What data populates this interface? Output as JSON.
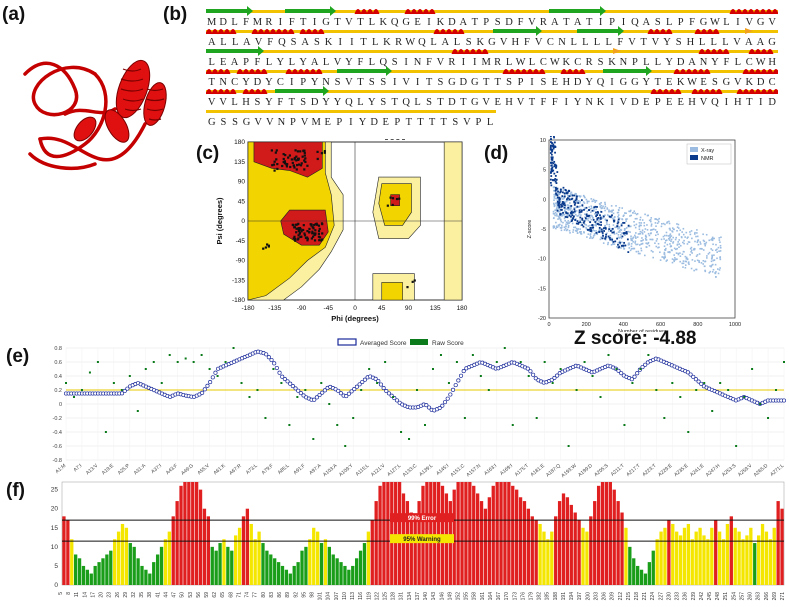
{
  "panels": {
    "a": "(a)",
    "b": "(b)",
    "c": "(c)",
    "d": "(d)",
    "e": "(e)",
    "f": "(f)"
  },
  "sequence": {
    "lines": [
      "MDLFMRIFTIGTVTLKQGEIKDATPSDFVRATATIPIQASLPFGWLIVG V",
      "ALLAVFQSASKIITLKRWQLALSKGVHFVCNLLLLFVTVYSHLLLVAAG",
      "LEAPFLYLYALVYFLQSINFVRIIMRLWLCWKCRSKNPLLYDANYFLCWH",
      "TNCYDYCIPYNSVTSSIVITSGDGTTSPISEHDYQIGGYTEKWESGVKDC",
      "VVLHSYFTSDYYQLYSTQLSTDTGVEHVTFFIYNKIVDEPEEHVQIHTID",
      "GSSGVVNPVMEPIYDEPTTTTSVPL"
    ],
    "colors": {
      "helix": "#d40000",
      "strand": "#1fa51f",
      "coil": "#f2c200",
      "turn": "#f2a020"
    }
  },
  "ramachandran": {
    "xlabel": "Phi (degrees)",
    "ylabel": "Psi (degrees)",
    "xticks": [
      "-180",
      "-135",
      "-90",
      "-45",
      "0",
      "45",
      "90",
      "135",
      "180"
    ],
    "yticks": [
      "180",
      "135",
      "90",
      "45",
      "0",
      "-45",
      "-90",
      "-135",
      "-180"
    ],
    "colors": {
      "core": "#d11a1a",
      "allowed": "#f2d400",
      "generous": "#faf0a0"
    }
  },
  "zscore": {
    "label": "Z score: -4.88",
    "legend": [
      "X-ray",
      "NMR"
    ],
    "xlabel": "Number of residues",
    "ylabel": "Z-score",
    "xticks": [
      "0",
      "200",
      "400",
      "600",
      "800",
      "1000"
    ],
    "yticks": [
      "10",
      "5",
      "0",
      "-5",
      "-10",
      "-15",
      "-20"
    ],
    "colors": {
      "xray": "#9bbce0",
      "nmr": "#0a3a8c"
    }
  },
  "chart_data": [
    {
      "type": "line",
      "title": "",
      "legend": [
        "Averaged Score",
        "Raw Score"
      ],
      "ylim": [
        -0.8,
        0.8
      ],
      "yticks": [
        "0.8",
        "0.6",
        "0.4",
        "0.2",
        "0",
        "-0.2",
        "-0.4",
        "-0.6",
        "-0.8"
      ],
      "xticks": [
        "A1:M",
        "A7:I",
        "A13:V",
        "A19:E",
        "A25:P",
        "A31:A",
        "A37:I",
        "A43:F",
        "A49:G",
        "A55:V",
        "A61:K",
        "A67:R",
        "A73:L",
        "A79:F",
        "A85:L",
        "A91:F",
        "A97:A",
        "A103:A",
        "A109:Y",
        "A115:L",
        "A121:V",
        "A127:L",
        "A133:C",
        "A139:L",
        "A145:I",
        "A151:C",
        "A157:N",
        "A163:I",
        "A169:I",
        "A175:T",
        "A181:E",
        "A187:Q",
        "A193:W",
        "A199:D",
        "A205:S",
        "A211:T",
        "A217:T",
        "A223:T",
        "A229:E",
        "A235:E",
        "A241:E",
        "A247:H",
        "A253:S",
        "A259:V",
        "A265:D",
        "A271:L"
      ],
      "threshold": 0.2,
      "series": [
        {
          "name": "Averaged Score",
          "values": [
            0.15,
            0.15,
            0.15,
            0.15,
            0.15,
            0.15,
            0.15,
            0.15,
            0.25,
            0.3,
            0.25,
            0.2,
            0.15,
            0.1,
            0.15,
            0.12,
            0.1,
            0.15,
            0.3,
            0.5,
            0.55,
            0.6,
            0.65,
            0.7,
            0.75,
            0.72,
            0.6,
            0.4,
            0.3,
            0.2,
            0.1,
            0.05,
            0.15,
            0.25,
            0.2,
            0.1,
            0.2,
            0.3,
            0.4,
            0.35,
            0.2,
            0.1,
            0.0,
            -0.05,
            -0.05,
            0.0,
            -0.1,
            -0.05,
            0.1,
            0.3,
            0.5,
            0.55,
            0.6,
            0.55,
            0.5,
            0.55,
            0.6,
            0.55,
            0.5,
            0.35,
            0.3,
            0.35,
            0.45,
            0.5,
            0.55,
            0.5,
            0.45,
            0.5,
            0.55,
            0.5,
            0.4,
            0.35,
            0.5,
            0.6,
            0.65,
            0.6,
            0.55,
            0.5,
            0.45,
            0.35,
            0.25,
            0.2,
            0.15,
            0.1,
            0.05,
            0.1,
            0.05,
            0.0,
            0.05,
            0.05,
            0.05
          ]
        },
        {
          "name": "Raw Score",
          "values": [
            0.3,
            0.1,
            0.2,
            0.45,
            0.6,
            -0.4,
            0.3,
            0.2,
            0.4,
            -0.1,
            0.5,
            0.6,
            0.3,
            0.7,
            0.6,
            0.65,
            0.6,
            0.7,
            0.5,
            0.4,
            0.6,
            0.8,
            0.3,
            0.1,
            0.2,
            -0.2,
            0.5,
            0.3,
            -0.3,
            0.1,
            0.2,
            -0.5,
            0.3,
            0.0,
            -0.3,
            -0.6,
            -0.2,
            0.2,
            0.5,
            0.3,
            0.6,
            0.1,
            -0.4,
            -0.5,
            0.2,
            -0.3,
            0.5,
            0.7,
            0.3,
            0.6,
            -0.2,
            0.7,
            0.4,
            0.2,
            0.6,
            0.8,
            -0.3,
            0.6,
            0.4,
            -0.2,
            0.6,
            0.3,
            0.5,
            -0.6,
            0.2,
            0.6,
            0.4,
            0.1,
            0.7,
            0.5,
            -0.3,
            0.3,
            0.5,
            0.7,
            0.2,
            -0.2,
            0.3,
            0.1,
            -0.4,
            0.2,
            0.3,
            -0.1,
            0.3,
            0.2,
            -0.6,
            0.1,
            0.5,
            0.0,
            -0.2,
            0.2,
            0.6
          ]
        }
      ]
    },
    {
      "type": "bar",
      "title": "",
      "ylim": [
        0,
        27
      ],
      "yticks": [
        "25",
        "20",
        "15",
        "10",
        "5",
        "0"
      ],
      "thresholds": [
        {
          "value": 17,
          "label": "99% Error"
        },
        {
          "value": 11.5,
          "label": "95% Warning"
        }
      ],
      "xticks": [
        "5",
        "8",
        "11",
        "14",
        "17",
        "20",
        "23",
        "26",
        "29",
        "32",
        "35",
        "38",
        "41",
        "44",
        "47",
        "50",
        "53",
        "56",
        "59",
        "62",
        "65",
        "68",
        "71",
        "74",
        "77",
        "80",
        "83",
        "86",
        "89",
        "92",
        "95",
        "98",
        "101",
        "104",
        "107",
        "110",
        "113",
        "116",
        "119",
        "122",
        "125",
        "128",
        "131",
        "134",
        "137",
        "140",
        "143",
        "146",
        "149",
        "152",
        "155",
        "158",
        "161",
        "164",
        "167",
        "170",
        "173",
        "176",
        "179",
        "182",
        "185",
        "188",
        "191",
        "194",
        "197",
        "200",
        "203",
        "206",
        "209",
        "212",
        "215",
        "218",
        "221",
        "224",
        "227",
        "230",
        "233",
        "236",
        "239",
        "242",
        "245",
        "248",
        "251",
        "254",
        "257",
        "260",
        "263",
        "266",
        "269",
        "271"
      ],
      "values": [
        18,
        17,
        12,
        8,
        7,
        5,
        4,
        3,
        5,
        6,
        7,
        8,
        9,
        12,
        14,
        16,
        15,
        11,
        10,
        7,
        5,
        4,
        3,
        6,
        8,
        10,
        12,
        14,
        18,
        22,
        26,
        27,
        27,
        27,
        27,
        25,
        20,
        18,
        10,
        9,
        11,
        12,
        10,
        9,
        13,
        15,
        18,
        20,
        16,
        12,
        14,
        11,
        9,
        8,
        7,
        6,
        5,
        4,
        3,
        5,
        6,
        9,
        10,
        12,
        15,
        14,
        11,
        12,
        10,
        8,
        7,
        6,
        5,
        4,
        5,
        7,
        9,
        11,
        14,
        17,
        22,
        26,
        27,
        27,
        27,
        27,
        27,
        24,
        22,
        19,
        18,
        22,
        26,
        27,
        27,
        27,
        27,
        26,
        24,
        22,
        25,
        27,
        27,
        27,
        27,
        26,
        24,
        22,
        20,
        23,
        26,
        27,
        27,
        27,
        27,
        26,
        25,
        23,
        22,
        20,
        18,
        17,
        16,
        14,
        12,
        14,
        18,
        22,
        24,
        23,
        21,
        19,
        17,
        15,
        14,
        18,
        22,
        26,
        27,
        27,
        27,
        25,
        22,
        19,
        15,
        10,
        7,
        5,
        4,
        3,
        6,
        9,
        12,
        14,
        15,
        17,
        16,
        14,
        13,
        15,
        16,
        12,
        14,
        15,
        13,
        12,
        15,
        17,
        14,
        12,
        16,
        18,
        15,
        14,
        12,
        13,
        15,
        11,
        13,
        16,
        14,
        12,
        15,
        22,
        20
      ],
      "colors": {
        "green": "#1a9e1a",
        "yellow": "#f5e600",
        "red": "#e02020"
      }
    }
  ]
}
